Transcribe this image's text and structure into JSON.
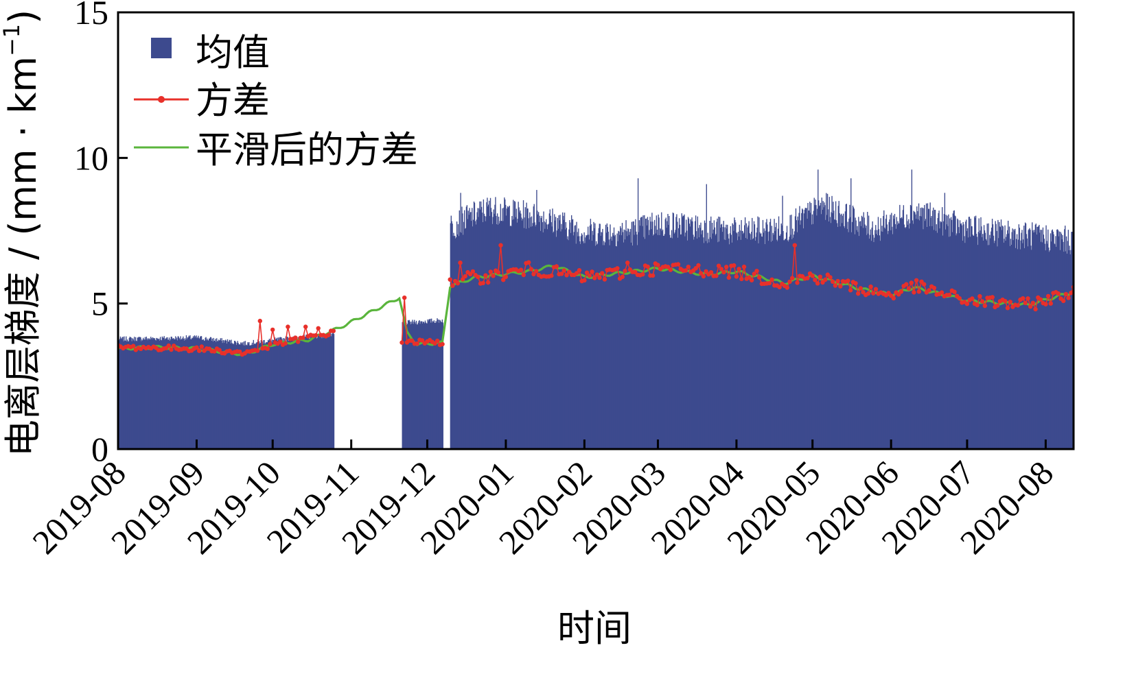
{
  "chart_data": {
    "type": "bar",
    "title": "",
    "xlabel": "时间",
    "ylabel": "电离层梯度 / (mm · km",
    "ylabel_sup": "−1",
    "ylabel_close": ")",
    "ylim": [
      0,
      15
    ],
    "yticks": [
      "0",
      "5",
      "10",
      "15"
    ],
    "xlim": [
      "2019-08-01",
      "2020-08-12"
    ],
    "xticks": [
      "2019-08",
      "2019-09",
      "2019-10",
      "2019-11",
      "2019-12",
      "2020-01",
      "2020-02",
      "2020-03",
      "2020-04",
      "2020-05",
      "2020-06",
      "2020-07",
      "2020-08"
    ],
    "grid": false,
    "legend_position": "top-left",
    "legend": [
      "均值",
      "方差",
      "平滑后的方差"
    ],
    "colors": {
      "mean": "#3d4a8e",
      "variance": "#e8302a",
      "smoothed": "#5ab53c"
    },
    "segments": [
      {
        "start": "2019-08-01",
        "end": "2019-10-25"
      },
      {
        "start": "2019-11-21",
        "end": "2019-12-07"
      },
      {
        "start": "2019-12-10",
        "end": "2020-08-12"
      }
    ],
    "mean_profile": [
      [
        "2019-08-01",
        3.75
      ],
      [
        "2019-09-01",
        3.8
      ],
      [
        "2019-09-20",
        3.6
      ],
      [
        "2019-10-10",
        3.8
      ],
      [
        "2019-10-25",
        3.9
      ],
      [
        "2019-11-21",
        4.3
      ],
      [
        "2019-12-07",
        4.4
      ],
      [
        "2019-12-10",
        7.5
      ],
      [
        "2019-12-25",
        8.1
      ],
      [
        "2020-01-15",
        7.8
      ],
      [
        "2020-02-01",
        7.3
      ],
      [
        "2020-02-20",
        7.3
      ],
      [
        "2020-03-01",
        7.6
      ],
      [
        "2020-04-01",
        7.3
      ],
      [
        "2020-04-20",
        7.4
      ],
      [
        "2020-05-05",
        8.2
      ],
      [
        "2020-05-25",
        7.4
      ],
      [
        "2020-06-10",
        8.0
      ],
      [
        "2020-07-01",
        7.4
      ],
      [
        "2020-08-12",
        7.0
      ]
    ],
    "variance_profile": [
      [
        "2019-08-01",
        3.5
      ],
      [
        "2019-09-01",
        3.45
      ],
      [
        "2019-09-20",
        3.3
      ],
      [
        "2019-10-10",
        3.75
      ],
      [
        "2019-10-25",
        4.0
      ],
      [
        "2019-11-21",
        3.7
      ],
      [
        "2019-12-07",
        3.65
      ],
      [
        "2019-12-10",
        5.8
      ],
      [
        "2020-01-01",
        6.0
      ],
      [
        "2020-01-10",
        6.2
      ],
      [
        "2020-02-01",
        5.9
      ],
      [
        "2020-03-01",
        6.2
      ],
      [
        "2020-04-01",
        6.1
      ],
      [
        "2020-04-20",
        5.7
      ],
      [
        "2020-05-01",
        5.95
      ],
      [
        "2020-05-20",
        5.5
      ],
      [
        "2020-06-01",
        5.3
      ],
      [
        "2020-06-10",
        5.6
      ],
      [
        "2020-07-01",
        5.1
      ],
      [
        "2020-07-25",
        4.95
      ],
      [
        "2020-08-12",
        5.4
      ]
    ],
    "smoothed_profile": [
      [
        "2019-08-01",
        3.45
      ],
      [
        "2019-08-15",
        3.5
      ],
      [
        "2019-09-01",
        3.45
      ],
      [
        "2019-09-20",
        3.25
      ],
      [
        "2019-10-01",
        3.6
      ],
      [
        "2019-10-15",
        3.75
      ],
      [
        "2019-10-27",
        4.15
      ],
      [
        "2019-11-20",
        5.2
      ],
      [
        "2019-11-23",
        4.0
      ],
      [
        "2019-11-27",
        3.6
      ],
      [
        "2019-12-07",
        3.65
      ],
      [
        "2019-12-10",
        5.6
      ],
      [
        "2019-12-20",
        5.9
      ],
      [
        "2020-01-10",
        6.1
      ],
      [
        "2020-01-20",
        6.3
      ],
      [
        "2020-02-01",
        5.9
      ],
      [
        "2020-03-01",
        6.2
      ],
      [
        "2020-03-20",
        6.0
      ],
      [
        "2020-04-01",
        6.1
      ],
      [
        "2020-04-20",
        5.7
      ],
      [
        "2020-05-01",
        5.95
      ],
      [
        "2020-05-20",
        5.5
      ],
      [
        "2020-06-01",
        5.3
      ],
      [
        "2020-06-10",
        5.55
      ],
      [
        "2020-07-01",
        5.1
      ],
      [
        "2020-07-25",
        4.95
      ],
      [
        "2020-08-12",
        5.4
      ]
    ],
    "variance_spikes": [
      [
        "2019-09-26",
        4.4
      ],
      [
        "2019-10-01",
        4.1
      ],
      [
        "2019-10-07",
        4.2
      ],
      [
        "2019-10-14",
        4.2
      ],
      [
        "2019-10-19",
        4.15
      ],
      [
        "2019-11-22",
        5.2
      ],
      [
        "2019-12-14",
        6.4
      ],
      [
        "2019-12-30",
        7.0
      ],
      [
        "2020-02-18",
        6.4
      ],
      [
        "2020-04-24",
        7.0
      ]
    ],
    "mean_spikes": [
      [
        "2019-12-14",
        8.8
      ],
      [
        "2020-01-13",
        8.9
      ],
      [
        "2020-02-22",
        9.3
      ],
      [
        "2020-03-20",
        9.1
      ],
      [
        "2020-05-03",
        9.6
      ],
      [
        "2020-05-16",
        9.3
      ],
      [
        "2020-06-09",
        9.6
      ],
      [
        "2020-06-22",
        8.8
      ],
      [
        "2020-04-19",
        8.7
      ]
    ]
  }
}
